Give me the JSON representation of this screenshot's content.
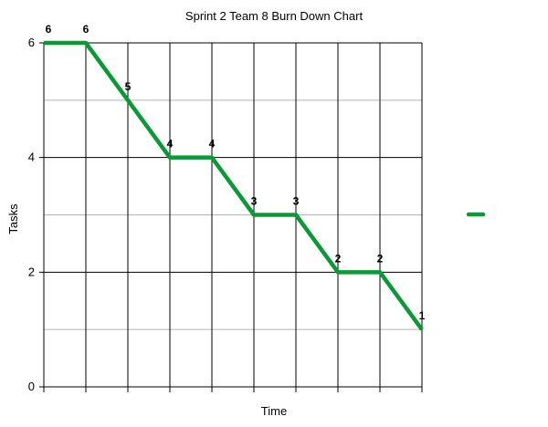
{
  "chart_data": {
    "type": "line",
    "title": "Sprint 2 Team 8 Burn Down Chart",
    "xlabel": "Time",
    "ylabel": "Tasks",
    "ylim": [
      0,
      6
    ],
    "ytick_labels": [
      "0",
      "2",
      "4",
      "6"
    ],
    "x": [
      0,
      1,
      2,
      3,
      4,
      5,
      6,
      7,
      8,
      9
    ],
    "series": [
      {
        "values": [
          6,
          6,
          5,
          4,
          4,
          3,
          3,
          2,
          2,
          1
        ],
        "data_labels": [
          "6",
          "6",
          "5",
          "4",
          "4",
          "3",
          "3",
          "2",
          "2",
          "1"
        ],
        "color": "#0a9a35"
      }
    ],
    "grid": true,
    "legend": "right",
    "gridline_colors": {
      "major": "#000000",
      "minor": "#b5b5b5"
    }
  }
}
